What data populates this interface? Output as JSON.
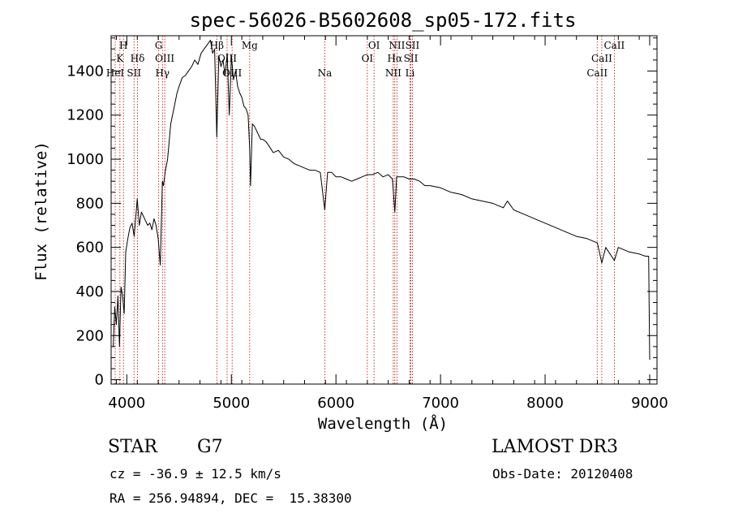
{
  "chart_data": {
    "type": "line",
    "title": "spec-56026-B5602608_sp05-172.fits",
    "xlabel": "Wavelength (Å)",
    "ylabel": "Flux (relative)",
    "xlim": [
      3850,
      9070
    ],
    "ylim": [
      -20,
      1560
    ],
    "xticks": [
      4000,
      5000,
      6000,
      7000,
      8000,
      9000
    ],
    "yticks": [
      0,
      200,
      400,
      600,
      800,
      1000,
      1200,
      1400
    ],
    "series": [
      {
        "name": "flux",
        "x": [
          3870,
          3885,
          3900,
          3915,
          3930,
          3945,
          3960,
          3975,
          3990,
          4010,
          4030,
          4050,
          4070,
          4090,
          4100,
          4120,
          4140,
          4160,
          4180,
          4200,
          4220,
          4240,
          4260,
          4280,
          4300,
          4320,
          4340,
          4350,
          4370,
          4390,
          4420,
          4450,
          4480,
          4500,
          4530,
          4560,
          4590,
          4620,
          4650,
          4680,
          4710,
          4740,
          4770,
          4800,
          4820,
          4840,
          4861,
          4880,
          4900,
          4920,
          4940,
          4960,
          4980,
          5000,
          5020,
          5040,
          5060,
          5080,
          5100,
          5120,
          5140,
          5160,
          5175,
          5183,
          5200,
          5220,
          5250,
          5280,
          5300,
          5330,
          5360,
          5400,
          5450,
          5500,
          5550,
          5600,
          5650,
          5700,
          5750,
          5800,
          5850,
          5893,
          5920,
          5960,
          6000,
          6050,
          6100,
          6150,
          6200,
          6250,
          6300,
          6350,
          6400,
          6450,
          6500,
          6540,
          6563,
          6580,
          6600,
          6650,
          6700,
          6750,
          6800,
          6850,
          6900,
          7000,
          7100,
          7200,
          7300,
          7400,
          7500,
          7600,
          7640,
          7700,
          7800,
          7900,
          8000,
          8100,
          8200,
          8300,
          8400,
          8500,
          8542,
          8580,
          8662,
          8700,
          8800,
          8900,
          8960,
          8990,
          9000
        ],
        "values": [
          150,
          330,
          250,
          380,
          150,
          420,
          380,
          300,
          580,
          640,
          690,
          710,
          650,
          760,
          820,
          700,
          760,
          740,
          720,
          700,
          710,
          680,
          730,
          700,
          640,
          520,
          900,
          880,
          950,
          1000,
          1160,
          1230,
          1300,
          1330,
          1370,
          1380,
          1400,
          1420,
          1450,
          1430,
          1480,
          1500,
          1520,
          1540,
          1480,
          1500,
          1100,
          1470,
          1420,
          1450,
          1380,
          1480,
          1200,
          1470,
          1360,
          1400,
          1330,
          1300,
          1280,
          1240,
          1230,
          1200,
          1050,
          880,
          1160,
          1150,
          1120,
          1090,
          1090,
          1080,
          1060,
          1030,
          1040,
          1010,
          1000,
          980,
          970,
          960,
          950,
          950,
          940,
          770,
          940,
          940,
          920,
          920,
          910,
          900,
          910,
          920,
          930,
          930,
          940,
          920,
          930,
          910,
          760,
          920,
          920,
          920,
          910,
          910,
          900,
          880,
          880,
          870,
          850,
          840,
          820,
          810,
          800,
          780,
          810,
          770,
          750,
          730,
          710,
          690,
          670,
          650,
          640,
          620,
          530,
          600,
          540,
          600,
          580,
          570,
          560,
          560,
          90
        ]
      }
    ],
    "spectral_lines": [
      {
        "label": "H",
        "wavelength": 3968,
        "row": 0
      },
      {
        "label": "K",
        "wavelength": 3934,
        "row": 1
      },
      {
        "label": "Hδ",
        "wavelength": 4102,
        "row": 1
      },
      {
        "label": "HeI",
        "wavelength": 3889,
        "row": 2
      },
      {
        "label": "SII",
        "wavelength": 4069,
        "row": 2
      },
      {
        "label": "G",
        "wavelength": 4305,
        "row": 0
      },
      {
        "label": "OIII",
        "wavelength": 4363,
        "row": 1
      },
      {
        "label": "Hγ",
        "wavelength": 4341,
        "row": 2
      },
      {
        "label": "Hβ",
        "wavelength": 4861,
        "row": 0
      },
      {
        "label": "OIII",
        "wavelength": 4959,
        "row": 1
      },
      {
        "label": "OIII",
        "wavelength": 5007,
        "row": 2
      },
      {
        "label": "Mg",
        "wavelength": 5175,
        "row": 0
      },
      {
        "label": "Na",
        "wavelength": 5893,
        "row": 2
      },
      {
        "label": "OI",
        "wavelength": 6364,
        "row": 0
      },
      {
        "label": "OI",
        "wavelength": 6300,
        "row": 1
      },
      {
        "label": "NII",
        "wavelength": 6548,
        "row": 2
      },
      {
        "label": "NII",
        "wavelength": 6583,
        "row": 0
      },
      {
        "label": "Hα",
        "wavelength": 6563,
        "row": 1
      },
      {
        "label": "SII",
        "wavelength": 6716,
        "row": 1
      },
      {
        "label": "SII",
        "wavelength": 6731,
        "row": 0
      },
      {
        "label": "Li",
        "wavelength": 6708,
        "row": 2
      },
      {
        "label": "CaII",
        "wavelength": 8662,
        "row": 0
      },
      {
        "label": "CaII",
        "wavelength": 8542,
        "row": 1
      },
      {
        "label": "CaII",
        "wavelength": 8498,
        "row": 2
      }
    ]
  },
  "info": {
    "object_class": "STAR",
    "subclass": "G7",
    "survey": "LAMOST DR3",
    "redshift": "cz = -36.9 ± 12.5 km/s",
    "obs_date": "Obs-Date: 20120408",
    "coordinates": "RA = 256.94894, DEC =  15.38300"
  },
  "colors": {
    "axes": "#000000",
    "spectrum": "#000000",
    "line_markers": "#c00000",
    "background": "#ffffff"
  }
}
